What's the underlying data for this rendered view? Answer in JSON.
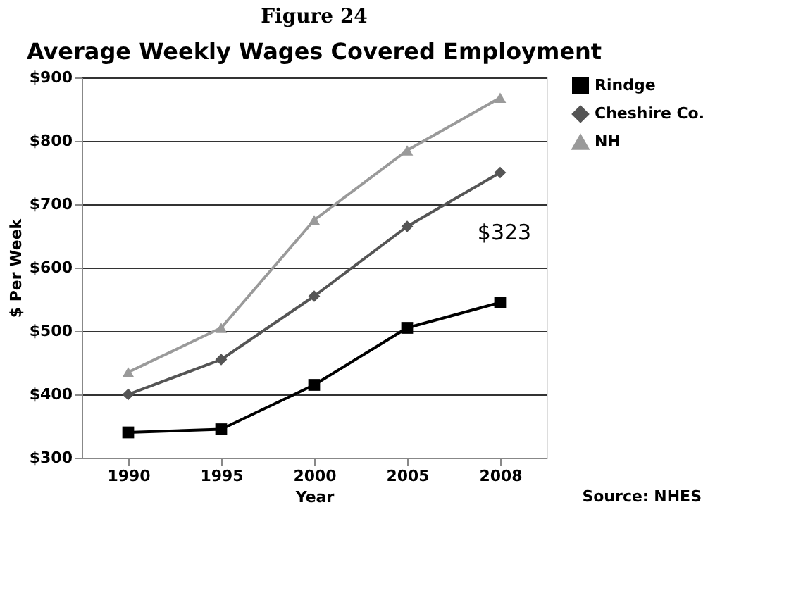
{
  "chart_data": {
    "type": "line",
    "title": "Average Weekly Wages Covered Employment",
    "xlabel": "Year",
    "ylabel": "$ Per Week",
    "categories": [
      "1990",
      "1995",
      "2000",
      "2005",
      "2008"
    ],
    "series": [
      {
        "name": "Rindge",
        "color": "#000000",
        "marker": "square",
        "values": [
          340,
          345,
          415,
          505,
          545
        ]
      },
      {
        "name": "Cheshire Co.",
        "color": "#555555",
        "marker": "diamond",
        "values": [
          400,
          455,
          555,
          665,
          750
        ]
      },
      {
        "name": "NH",
        "color": "#9a9a9a",
        "marker": "triangle",
        "values": [
          435,
          505,
          675,
          785,
          868
        ]
      }
    ],
    "ylim": [
      300,
      900
    ],
    "yticks": [
      {
        "value": 300,
        "label": "$300"
      },
      {
        "value": 400,
        "label": "$400"
      },
      {
        "value": 500,
        "label": "$500"
      },
      {
        "value": 600,
        "label": "$600"
      },
      {
        "value": 700,
        "label": "$700"
      },
      {
        "value": 800,
        "label": "$800"
      },
      {
        "value": 900,
        "label": "$900"
      }
    ],
    "grid": "y",
    "legend": "right",
    "annotations": [
      "Figure 24",
      "$323",
      "Source: NHES"
    ]
  }
}
